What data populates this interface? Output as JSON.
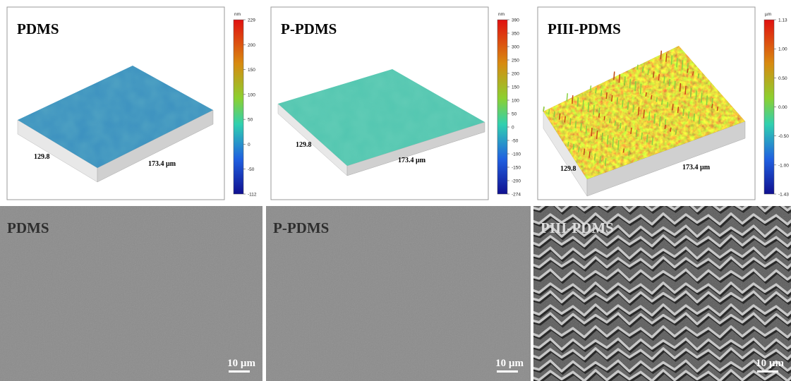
{
  "afm_panels": [
    {
      "label": "PDMS",
      "unit": "nm",
      "colorbar_ticks": [
        "229",
        "200",
        "150",
        "100",
        "50",
        "0",
        "-50",
        "-112"
      ],
      "x_label": "129.8",
      "y_label": "173.4 µm"
    },
    {
      "label": "P-PDMS",
      "unit": "nm",
      "colorbar_ticks": [
        "390",
        "350",
        "300",
        "250",
        "200",
        "150",
        "100",
        "50",
        "0",
        "-50",
        "-100",
        "-150",
        "-200",
        "-274"
      ],
      "x_label": "129.8",
      "y_label": "173.4 µm"
    },
    {
      "label": "PIII-PDMS",
      "unit": "µm",
      "colorbar_ticks": [
        "1.13",
        "1.00",
        "0.50",
        "0.00",
        "-0.50",
        "-1.00",
        "-1.43"
      ],
      "x_label": "129.8",
      "y_label": "173.4 µm"
    }
  ],
  "sem_panels": [
    {
      "label": "PDMS",
      "scale_bar": "10 µm"
    },
    {
      "label": "P-PDMS",
      "scale_bar": "10 µm"
    },
    {
      "label": "PIII-PDMS",
      "scale_bar": "10 µm"
    }
  ]
}
